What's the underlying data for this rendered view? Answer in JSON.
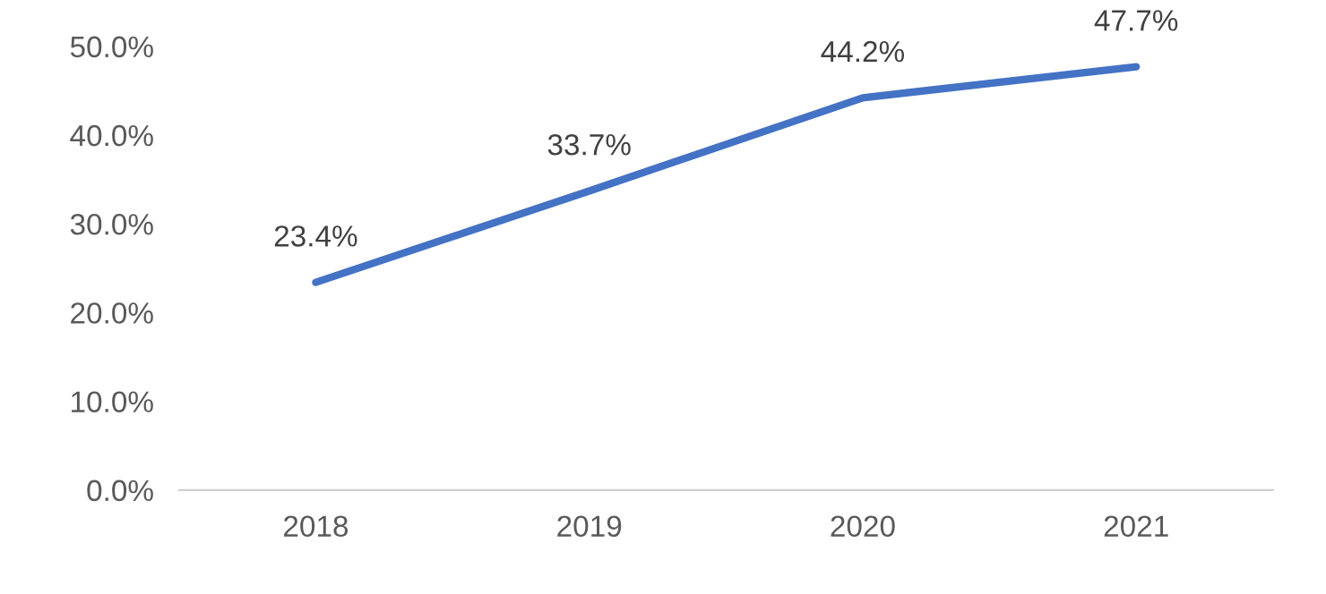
{
  "chart_data": {
    "type": "line",
    "categories": [
      "2018",
      "2019",
      "2020",
      "2021"
    ],
    "series": [
      {
        "color": "#4472c4",
        "values": [
          23.4,
          33.7,
          44.2,
          47.7
        ],
        "value_labels": [
          "23.4%",
          "33.7%",
          "44.2%",
          "47.7%"
        ]
      }
    ],
    "ylim": [
      0,
      50
    ],
    "yticks": [
      {
        "value": 0,
        "label": "0.0%"
      },
      {
        "value": 10,
        "label": "10.0%"
      },
      {
        "value": 20,
        "label": "20.0%"
      },
      {
        "value": 30,
        "label": "30.0%"
      },
      {
        "value": 40,
        "label": "40.0%"
      },
      {
        "value": 50,
        "label": "50.0%"
      }
    ],
    "grid": false,
    "legend": false,
    "marker": "none",
    "line_style": "solid"
  }
}
